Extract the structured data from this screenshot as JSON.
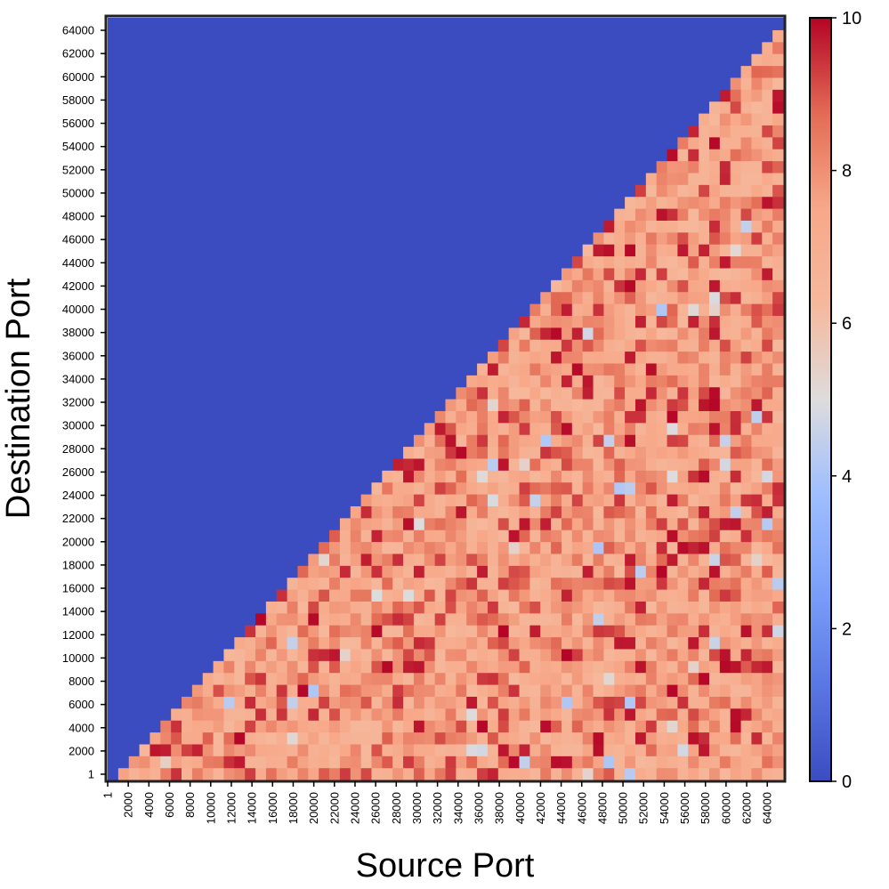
{
  "chart_data": {
    "type": "heatmap",
    "title": "",
    "xlabel": "Source Port",
    "ylabel": "Destination Port",
    "x_tick_labels": [
      "1",
      "2000",
      "4000",
      "6000",
      "8000",
      "10000",
      "12000",
      "14000",
      "16000",
      "18000",
      "20000",
      "22000",
      "24000",
      "26000",
      "28000",
      "30000",
      "32000",
      "34000",
      "36000",
      "38000",
      "40000",
      "42000",
      "44000",
      "46000",
      "48000",
      "50000",
      "52000",
      "54000",
      "56000",
      "58000",
      "60000",
      "62000",
      "64000"
    ],
    "y_tick_labels": [
      "1",
      "2000",
      "4000",
      "6000",
      "8000",
      "10000",
      "12000",
      "14000",
      "16000",
      "18000",
      "20000",
      "22000",
      "24000",
      "26000",
      "28000",
      "30000",
      "32000",
      "34000",
      "36000",
      "38000",
      "40000",
      "42000",
      "44000",
      "46000",
      "48000",
      "50000",
      "52000",
      "54000",
      "56000",
      "58000",
      "60000",
      "62000",
      "64000"
    ],
    "x_range": [
      1,
      65535
    ],
    "y_range": [
      1,
      65535
    ],
    "bins_per_axis": 64,
    "region_below_diagonal": "destination port < source port; cell values vary roughly between 5 and 10",
    "region_above_diagonal": "destination port > source port; cell value 0",
    "colorbar": {
      "colormap": "coolwarm",
      "min": 0,
      "max": 10,
      "ticks": [
        "0",
        "2",
        "4",
        "6",
        "8",
        "10"
      ]
    },
    "grid": false
  }
}
